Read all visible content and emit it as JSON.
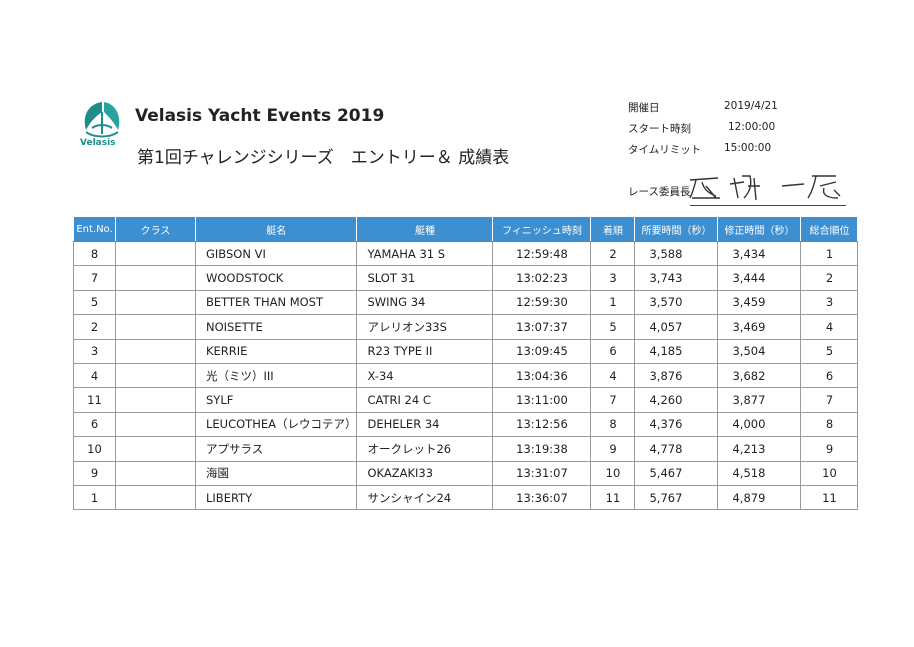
{
  "header": {
    "logo_text": "Velasis",
    "title_en": "Velasis Yacht Events 2019",
    "title_jp": "第1回チャレンジシリーズ　エントリー＆ 成績表"
  },
  "info": {
    "items": [
      {
        "label": "開催日",
        "value": "2019/4/21"
      },
      {
        "label": "スタート時刻",
        "value": "12:00:00"
      },
      {
        "label": "タイムリミット",
        "value": "15:00:00"
      }
    ],
    "committee_label": "レース委員長"
  },
  "table": {
    "headers": [
      "Ent.No.",
      "クラス",
      "艇名",
      "艇種",
      "フィニッシュ時刻",
      "着順",
      "所要時間（秒）",
      "修正時間（秒）",
      "総合順位"
    ],
    "rows": [
      [
        "8",
        "",
        "GIBSON VI",
        "YAMAHA 31 S",
        "12:59:48",
        "2",
        "3,588",
        "3,434",
        "1"
      ],
      [
        "7",
        "",
        "WOODSTOCK",
        "SLOT 31",
        "13:02:23",
        "3",
        "3,743",
        "3,444",
        "2"
      ],
      [
        "5",
        "",
        "BETTER THAN MOST",
        "SWING 34",
        "12:59:30",
        "1",
        "3,570",
        "3,459",
        "3"
      ],
      [
        "2",
        "",
        "NOISETTE",
        "アレリオン33S",
        "13:07:37",
        "5",
        "4,057",
        "3,469",
        "4"
      ],
      [
        "3",
        "",
        "KERRIE",
        "R23 TYPE II",
        "13:09:45",
        "6",
        "4,185",
        "3,504",
        "5"
      ],
      [
        "4",
        "",
        "光（ミツ）III",
        "X-34",
        "13:04:36",
        "4",
        "3,876",
        "3,682",
        "6"
      ],
      [
        "11",
        "",
        "SYLF",
        "CATRI 24 C",
        "13:11:00",
        "7",
        "4,260",
        "3,877",
        "7"
      ],
      [
        "6",
        "",
        "LEUCOTHEA（レウコテア）",
        "DEHELER 34",
        "13:12:56",
        "8",
        "4,376",
        "4,000",
        "8"
      ],
      [
        "10",
        "",
        "アプサラス",
        "オークレット26",
        "13:19:38",
        "9",
        "4,778",
        "4,213",
        "9"
      ],
      [
        "9",
        "",
        "海園",
        "OKAZAKI33",
        "13:31:07",
        "10",
        "5,467",
        "4,518",
        "10"
      ],
      [
        "1",
        "",
        "LIBERTY",
        "サンシャイン24",
        "13:36:07",
        "11",
        "5,767",
        "4,879",
        "11"
      ]
    ]
  },
  "colors": {
    "header_bg": "#3e8fd0",
    "logo": "#1f8c8c"
  }
}
